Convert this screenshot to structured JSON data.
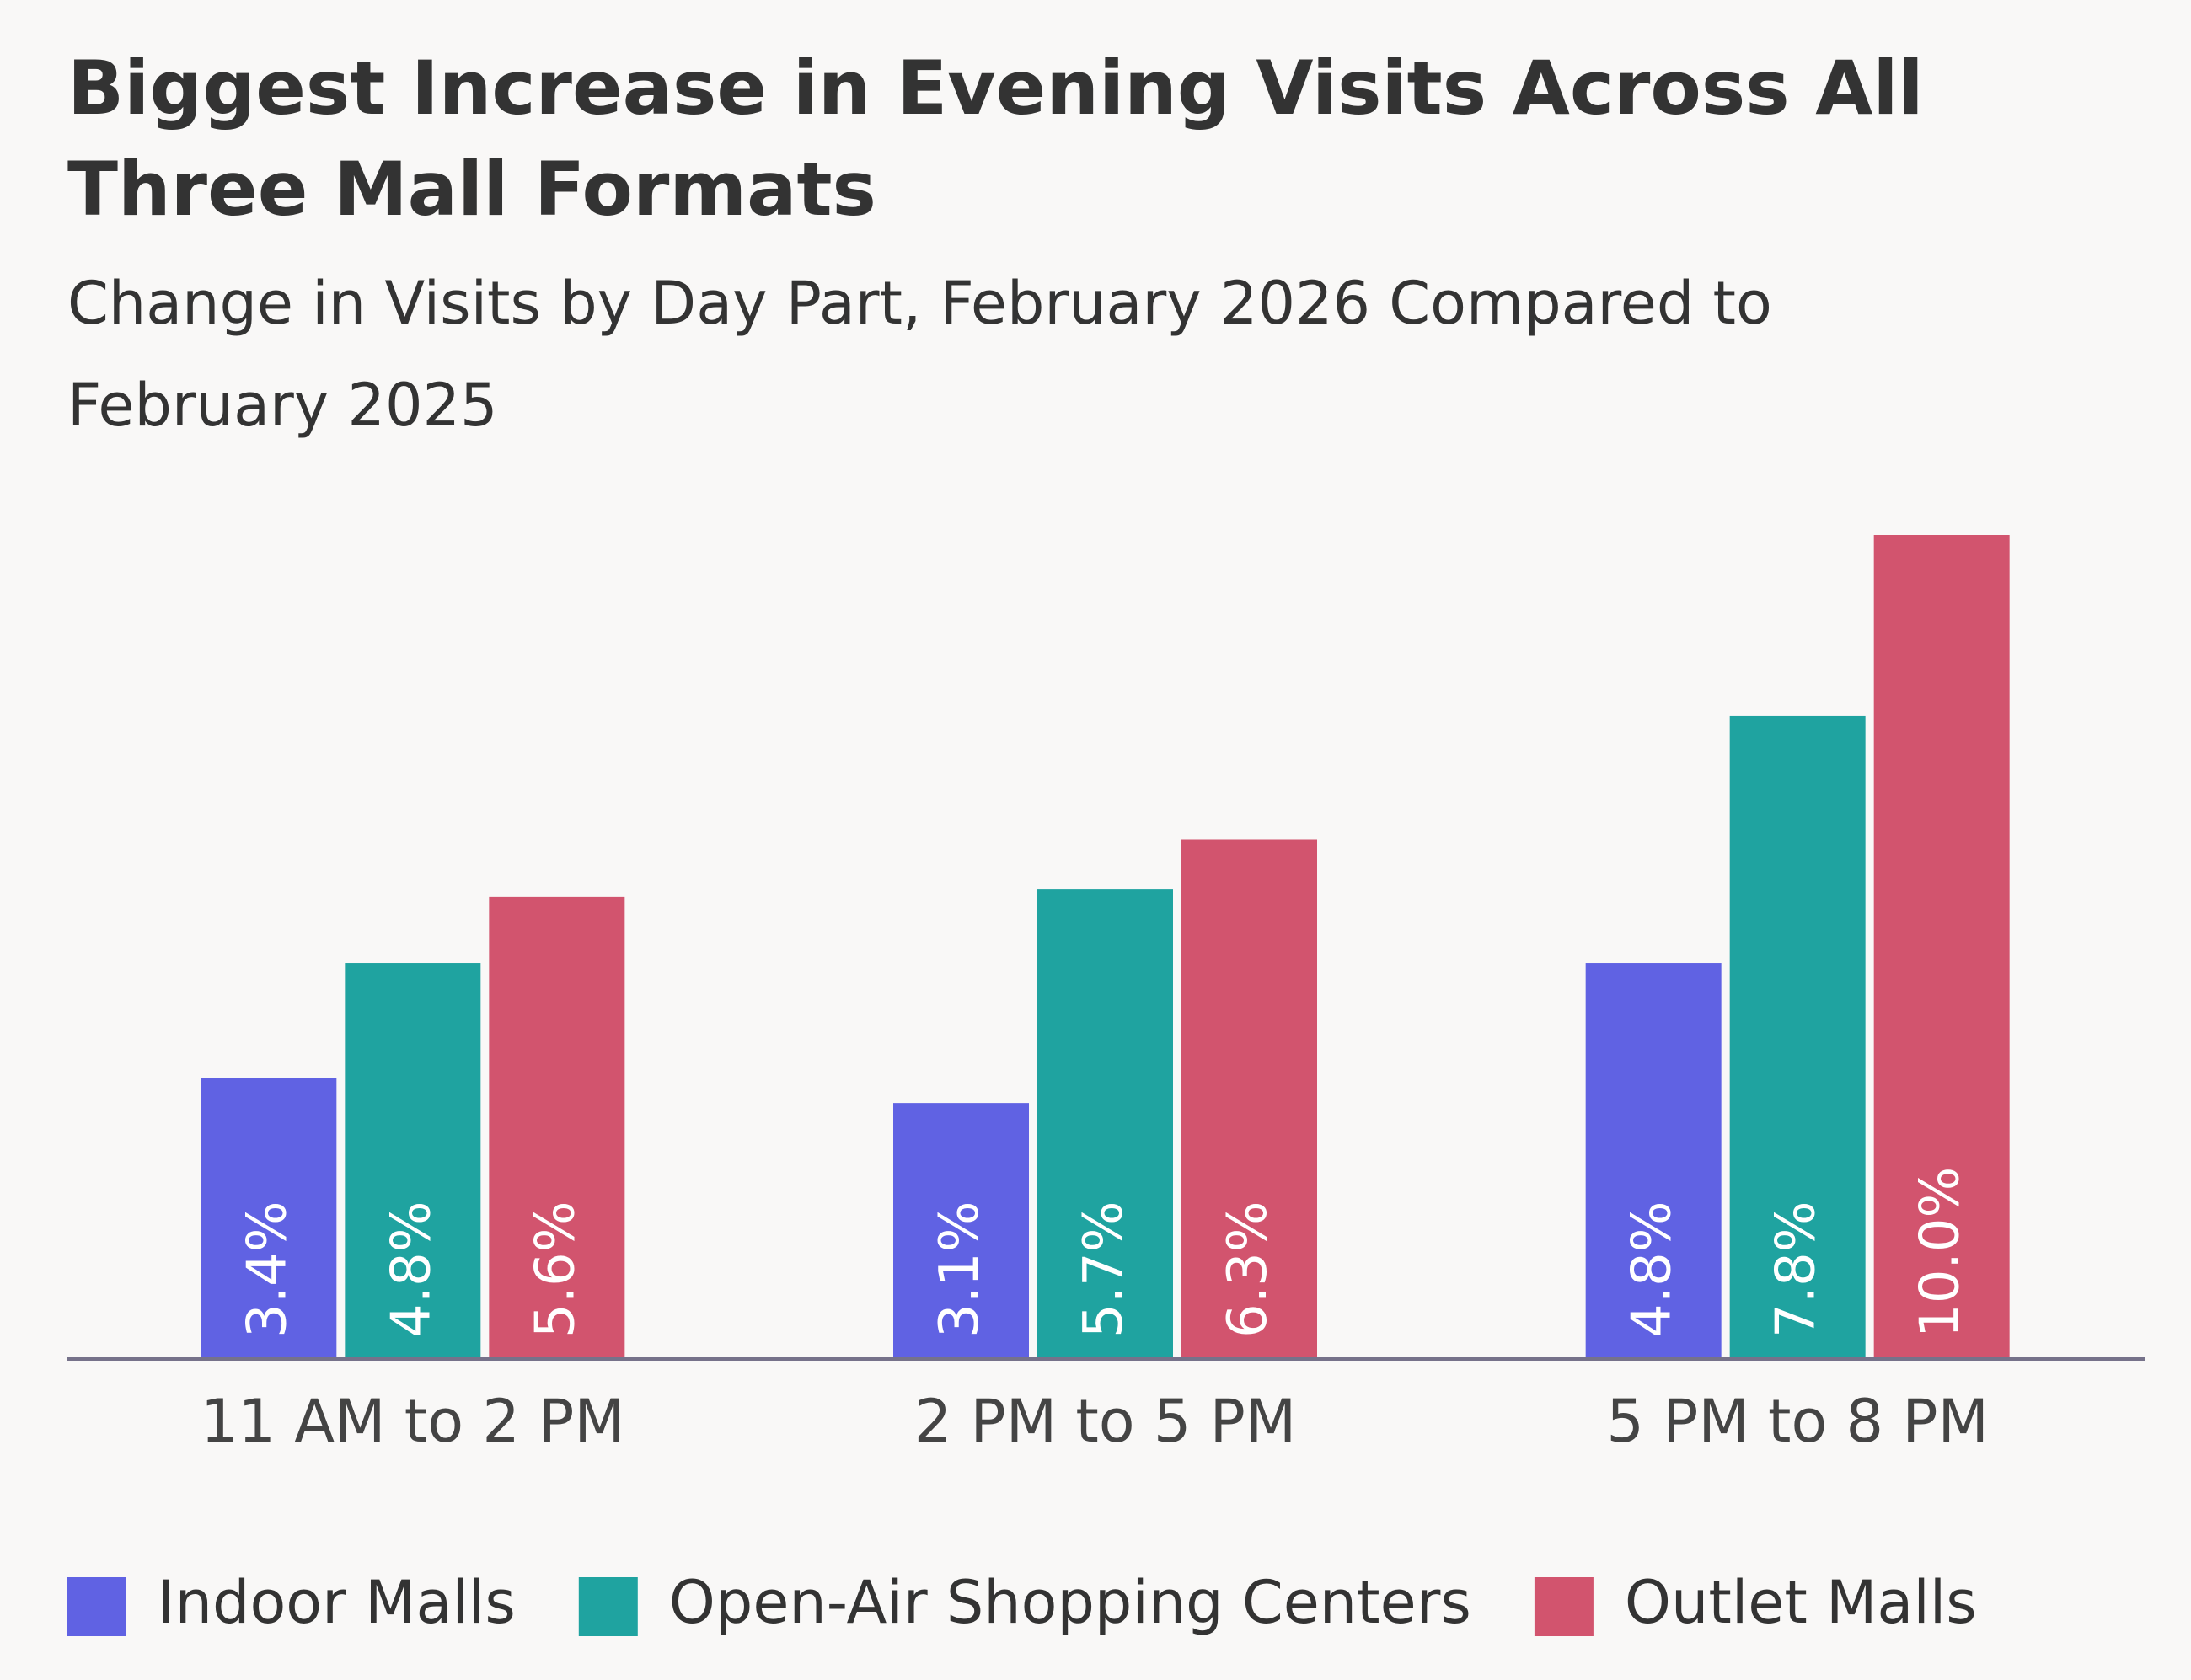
{
  "chart_data": {
    "type": "bar",
    "title": "Biggest Increase in Evening Visits Across All Three Mall Formats",
    "subtitle": "Change in Visits by Day Part, February 2026 Compared to February 2025",
    "categories": [
      "11 AM to 2 PM",
      "2 PM to 5 PM",
      "5 PM to 8 PM"
    ],
    "series": [
      {
        "name": "Indoor Malls",
        "color": "#6062e3",
        "values": [
          3.4,
          3.1,
          4.8
        ],
        "value_labels": [
          "3.4%",
          "3.1%",
          "4.8%"
        ]
      },
      {
        "name": "Open-Air Shopping Centers",
        "color": "#1fa3a0",
        "values": [
          4.8,
          5.7,
          7.8
        ],
        "value_labels": [
          "4.8%",
          "5.7%",
          "7.8%"
        ]
      },
      {
        "name": "Outlet Malls",
        "color": "#d2546e",
        "values": [
          5.6,
          6.3,
          10.0
        ],
        "value_labels": [
          "5.6%",
          "6.3%",
          "10.0%"
        ]
      }
    ],
    "ylim": [
      0,
      10
    ],
    "legend": "bottom"
  }
}
